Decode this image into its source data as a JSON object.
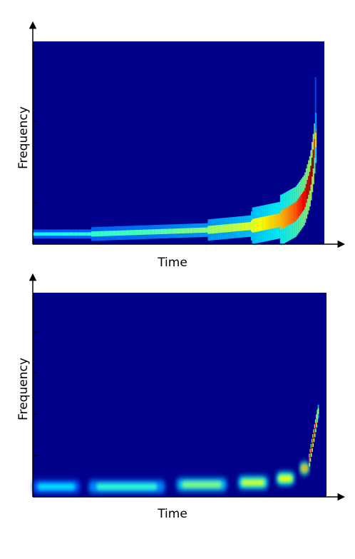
{
  "chart_data": [
    {
      "type": "heatmap",
      "xlabel": "Time",
      "ylabel": "Frequency",
      "colormap": "jet",
      "background_color": "#00008b",
      "grid": false,
      "legend": "none",
      "ridge": {
        "description_of_shape": "chirp",
        "t": [
          0.0,
          0.2,
          0.4,
          0.6,
          0.75,
          0.85,
          0.9,
          0.93,
          0.95,
          0.96,
          0.97
        ],
        "f": [
          0.05,
          0.05,
          0.06,
          0.07,
          0.09,
          0.12,
          0.16,
          0.22,
          0.32,
          0.42,
          0.55
        ],
        "intensity": [
          0.38,
          0.42,
          0.45,
          0.52,
          0.6,
          0.7,
          0.8,
          0.9,
          0.97,
          1.0,
          0.6
        ]
      }
    },
    {
      "type": "heatmap",
      "xlabel": "Time",
      "ylabel": "Frequency",
      "colormap": "jet",
      "background_color": "#00008b",
      "grid": false,
      "legend": "none",
      "blobs": [
        {
          "t_start": 0.0,
          "t_end": 0.16,
          "f": 0.05,
          "intensity": 0.35
        },
        {
          "t_start": 0.19,
          "t_end": 0.45,
          "f": 0.05,
          "intensity": 0.42
        },
        {
          "t_start": 0.49,
          "t_end": 0.66,
          "f": 0.06,
          "intensity": 0.5
        },
        {
          "t_start": 0.7,
          "t_end": 0.8,
          "f": 0.07,
          "intensity": 0.58
        },
        {
          "t_start": 0.83,
          "t_end": 0.89,
          "f": 0.09,
          "intensity": 0.62
        },
        {
          "t_start": 0.91,
          "t_end": 0.94,
          "f": 0.14,
          "intensity": 0.7
        }
      ],
      "ridge": {
        "t": [
          0.94,
          0.95,
          0.96,
          0.97
        ],
        "f": [
          0.18,
          0.26,
          0.34,
          0.42
        ],
        "intensity": [
          0.85,
          0.98,
          0.9,
          0.55
        ]
      }
    }
  ]
}
